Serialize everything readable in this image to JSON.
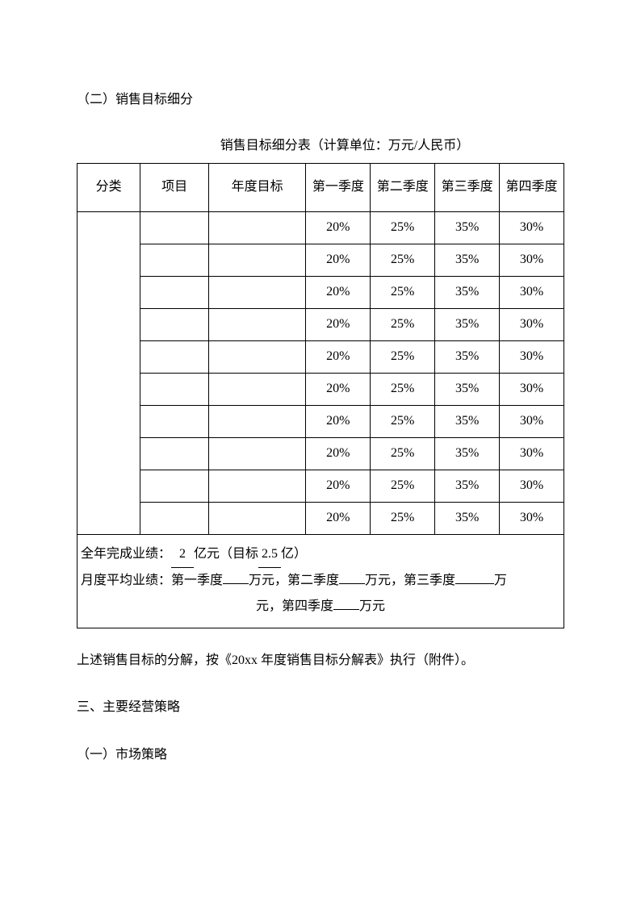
{
  "heading": "（二）销售目标细分",
  "table_title": "销售目标细分表（计算单位：万元/人民币）",
  "table": {
    "headers": [
      "分类",
      "项目",
      "年度目标",
      "第一季度",
      "第二季度",
      "第三季度",
      "第四季度"
    ],
    "rows": [
      {
        "c1": "",
        "c2": "",
        "c3": "",
        "q1": "20%",
        "q2": "25%",
        "q3": "35%",
        "q4": "30%"
      },
      {
        "c1": "",
        "c2": "",
        "c3": "",
        "q1": "20%",
        "q2": "25%",
        "q3": "35%",
        "q4": "30%"
      },
      {
        "c1": "",
        "c2": "",
        "c3": "",
        "q1": "20%",
        "q2": "25%",
        "q3": "35%",
        "q4": "30%"
      },
      {
        "c1": "",
        "c2": "",
        "c3": "",
        "q1": "20%",
        "q2": "25%",
        "q3": "35%",
        "q4": "30%"
      },
      {
        "c1": "",
        "c2": "",
        "c3": "",
        "q1": "20%",
        "q2": "25%",
        "q3": "35%",
        "q4": "30%"
      },
      {
        "c1": "",
        "c2": "",
        "c3": "",
        "q1": "20%",
        "q2": "25%",
        "q3": "35%",
        "q4": "30%"
      },
      {
        "c1": "",
        "c2": "",
        "c3": "",
        "q1": "20%",
        "q2": "25%",
        "q3": "35%",
        "q4": "30%"
      },
      {
        "c1": "",
        "c2": "",
        "c3": "",
        "q1": "20%",
        "q2": "25%",
        "q3": "35%",
        "q4": "30%"
      },
      {
        "c1": "",
        "c2": "",
        "c3": "",
        "q1": "20%",
        "q2": "25%",
        "q3": "35%",
        "q4": "30%"
      },
      {
        "c1": "",
        "c2": "",
        "c3": "",
        "q1": "20%",
        "q2": "25%",
        "q3": "35%",
        "q4": "30%"
      }
    ],
    "footer": {
      "annual_label_prefix": "全年完成业绩：",
      "annual_value": "2",
      "annual_unit": "亿元（目标",
      "annual_target": "2.5",
      "annual_suffix": "亿）",
      "monthly_prefix": "月度平均业绩：第一季度",
      "wan1": "万元，第二季度",
      "wan2": "万元，第三季度",
      "wan3_prefix": "万",
      "line3_prefix": "元，第四季度",
      "wan4": "万元"
    }
  },
  "para1": "上述销售目标的分解，按《20xx 年度销售目标分解表》执行（附件）。",
  "para2": "三、主要经营策略",
  "para3": "（一）市场策略"
}
